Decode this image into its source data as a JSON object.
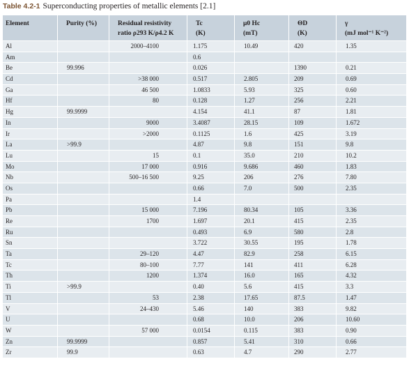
{
  "caption": {
    "label": "Table 4.2-1",
    "title": "Superconducting properties of metallic elements [2.1]"
  },
  "headers": [
    {
      "line1": "Element",
      "line2": ""
    },
    {
      "line1": "Purity (%)",
      "line2": ""
    },
    {
      "line1": "Residual resistivity",
      "line2": "ratio ρ293 K/ρ4.2 K"
    },
    {
      "line1": "Tc",
      "line2": "(K)"
    },
    {
      "line1": "μ0 Hc",
      "line2": "(mT)"
    },
    {
      "line1": "ΘD",
      "line2": "(K)"
    },
    {
      "line1": "γ",
      "line2": "(mJ mol⁻¹ K⁻²)"
    }
  ],
  "rows": [
    {
      "element": "Al",
      "purity": "",
      "rrr": "2000–4100",
      "tc": "1.175",
      "hc": "10.49",
      "theta": "420",
      "gamma": "1.35"
    },
    {
      "element": "Am",
      "purity": "",
      "rrr": "",
      "tc": "0.6",
      "hc": "",
      "theta": "",
      "gamma": ""
    },
    {
      "element": "Be",
      "purity": "99.996",
      "rrr": "",
      "tc": "0.026",
      "hc": "",
      "theta": "1390",
      "gamma": "0.21"
    },
    {
      "element": "Cd",
      "purity": "",
      "rrr": ">38 000",
      "tc": "0.517",
      "hc": "2.805",
      "theta": "209",
      "gamma": "0.69"
    },
    {
      "element": "Ga",
      "purity": "",
      "rrr": "46 500",
      "tc": "1.0833",
      "hc": "5.93",
      "theta": "325",
      "gamma": "0.60"
    },
    {
      "element": "Hf",
      "purity": "",
      "rrr": "80",
      "tc": "0.128",
      "hc": "1.27",
      "theta": "256",
      "gamma": "2.21"
    },
    {
      "element": "Hg",
      "purity": "99.9999",
      "rrr": "",
      "tc": "4.154",
      "hc": "41.1",
      "theta": "87",
      "gamma": "1.81"
    },
    {
      "element": "In",
      "purity": "",
      "rrr": "9000",
      "tc": "3.4087",
      "hc": "28.15",
      "theta": "109",
      "gamma": "1.672"
    },
    {
      "element": "Ir",
      "purity": "",
      "rrr": ">2000",
      "tc": "0.1125",
      "hc": "1.6",
      "theta": "425",
      "gamma": "3.19"
    },
    {
      "element": "La",
      "purity": ">99.9",
      "rrr": "",
      "tc": "4.87",
      "hc": "9.8",
      "theta": "151",
      "gamma": "9.8"
    },
    {
      "element": "Lu",
      "purity": "",
      "rrr": "15",
      "tc": "0.1",
      "hc": "35.0",
      "theta": "210",
      "gamma": "10.2"
    },
    {
      "element": "Mo",
      "purity": "",
      "rrr": "17 000",
      "tc": "0.916",
      "hc": "9.686",
      "theta": "460",
      "gamma": "1.83"
    },
    {
      "element": "Nb",
      "purity": "",
      "rrr": "500–16 500",
      "tc": "9.25",
      "hc": "206",
      "theta": "276",
      "gamma": "7.80"
    },
    {
      "element": "Os",
      "purity": "",
      "rrr": "",
      "tc": "0.66",
      "hc": "7.0",
      "theta": "500",
      "gamma": "2.35"
    },
    {
      "element": "Pa",
      "purity": "",
      "rrr": "",
      "tc": "1.4",
      "hc": "",
      "theta": "",
      "gamma": ""
    },
    {
      "element": "Pb",
      "purity": "",
      "rrr": "15 000",
      "tc": "7.196",
      "hc": "80.34",
      "theta": "105",
      "gamma": "3.36"
    },
    {
      "element": "Re",
      "purity": "",
      "rrr": "1700",
      "tc": "1.697",
      "hc": "20.1",
      "theta": "415",
      "gamma": "2.35"
    },
    {
      "element": "Ru",
      "purity": "",
      "rrr": "",
      "tc": "0.493",
      "hc": "6.9",
      "theta": "580",
      "gamma": "2.8"
    },
    {
      "element": "Sn",
      "purity": "",
      "rrr": "",
      "tc": "3.722",
      "hc": "30.55",
      "theta": "195",
      "gamma": "1.78"
    },
    {
      "element": "Ta",
      "purity": "",
      "rrr": "29–120",
      "tc": "4.47",
      "hc": "82.9",
      "theta": "258",
      "gamma": "6.15"
    },
    {
      "element": "Tc",
      "purity": "",
      "rrr": "80–100",
      "tc": "7.77",
      "hc": "141",
      "theta": "411",
      "gamma": "6.28"
    },
    {
      "element": "Th",
      "purity": "",
      "rrr": "1200",
      "tc": "1.374",
      "hc": "16.0",
      "theta": "165",
      "gamma": "4.32"
    },
    {
      "element": "Ti",
      "purity": ">99.9",
      "rrr": "",
      "tc": "0.40",
      "hc": "5.6",
      "theta": "415",
      "gamma": "3.3"
    },
    {
      "element": "Tl",
      "purity": "",
      "rrr": "53",
      "tc": "2.38",
      "hc": "17.65",
      "theta": "87.5",
      "gamma": "1.47"
    },
    {
      "element": "V",
      "purity": "",
      "rrr": "24–430",
      "tc": "5.46",
      "hc": "140",
      "theta": "383",
      "gamma": "9.82"
    },
    {
      "element": "U",
      "purity": "",
      "rrr": "",
      "tc": "0.68",
      "hc": "10.0",
      "theta": "206",
      "gamma": "10.60"
    },
    {
      "element": "W",
      "purity": "",
      "rrr": "57 000",
      "tc": "0.0154",
      "hc": "0.115",
      "theta": "383",
      "gamma": "0.90"
    },
    {
      "element": "Zn",
      "purity": "99.9999",
      "rrr": "",
      "tc": "0.857",
      "hc": "5.41",
      "theta": "310",
      "gamma": "0.66"
    },
    {
      "element": "Zr",
      "purity": "99.9",
      "rrr": "",
      "tc": "0.63",
      "hc": "4.7",
      "theta": "290",
      "gamma": "2.77"
    }
  ]
}
